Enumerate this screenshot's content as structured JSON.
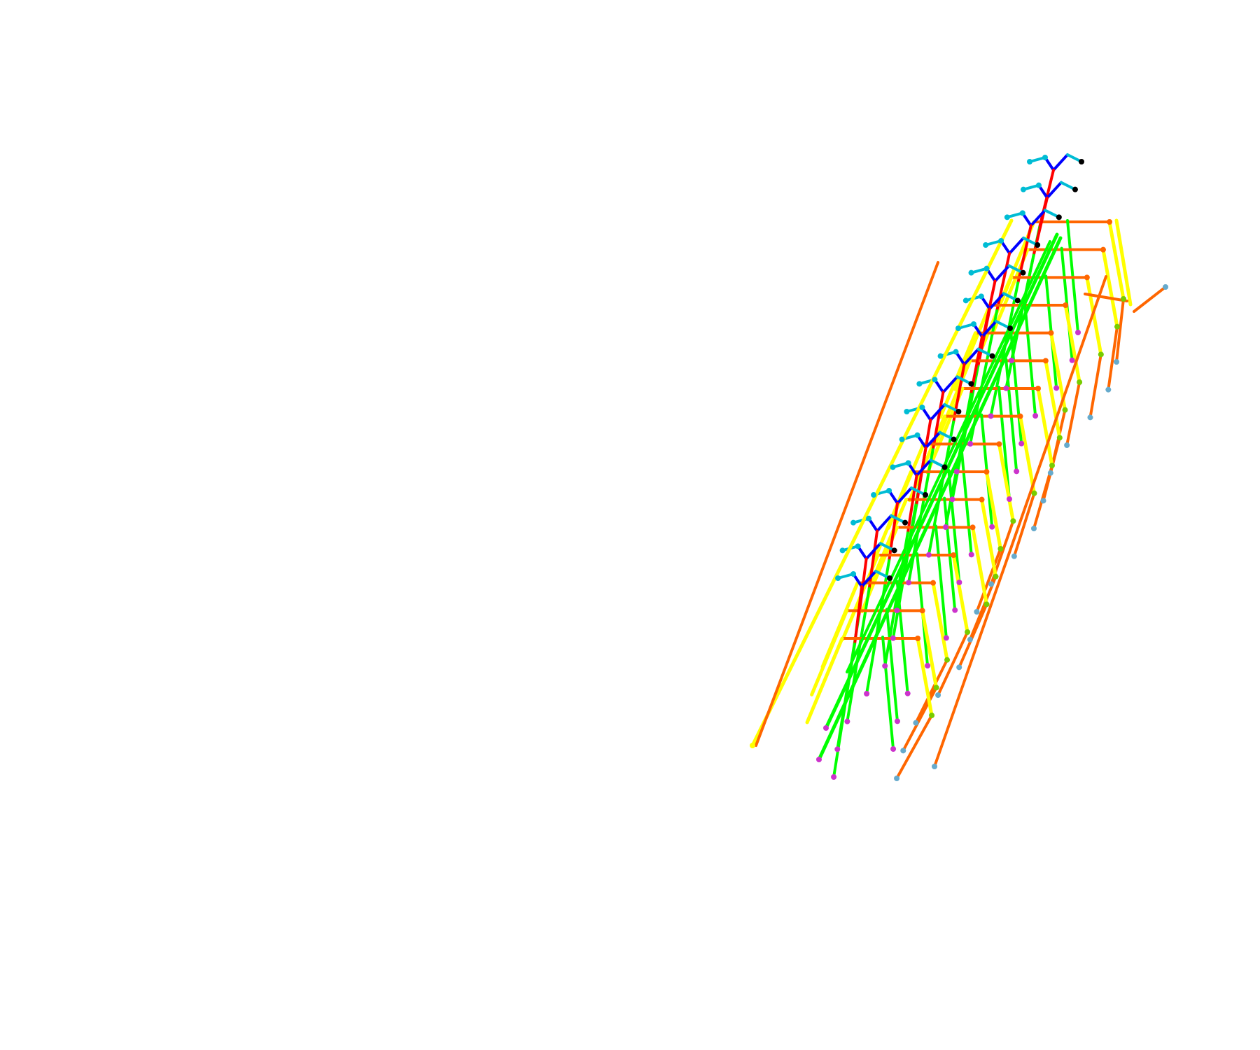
{
  "figure": {
    "description_free": true,
    "background": "#ffffff"
  },
  "palette": {
    "spine": "#ff0000",
    "head": "#0000ff",
    "face": "#00bcd4",
    "arm": "#ff6600",
    "leg": "#00ff00",
    "outline": "#ffff00",
    "joint_end": "#000000",
    "foot_joint": "#cc33cc",
    "hand_joint": "#66aacc",
    "knee_joint": "#77cc00"
  },
  "skeleton_frames": 16
}
